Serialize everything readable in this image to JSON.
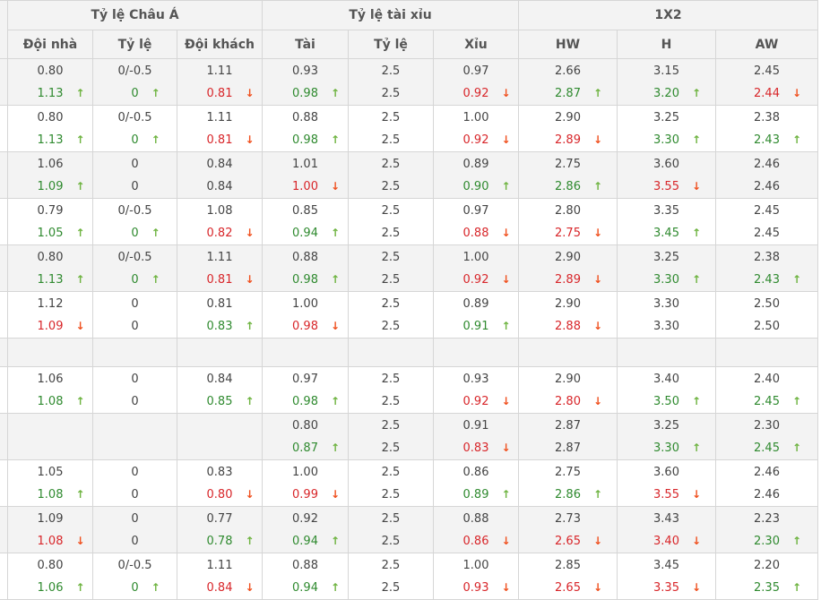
{
  "header": {
    "groups": [
      "Tỷ lệ Châu Á",
      "Tỷ lệ tài xỉu",
      "1X2"
    ],
    "columns": [
      "Đội nhà",
      "Tỷ lệ",
      "Đội khách",
      "Tài",
      "Tỷ lệ",
      "Xỉu",
      "HW",
      "H",
      "AW"
    ]
  },
  "colors": {
    "up_text": "#2f8a2f",
    "down_text": "#d8262a",
    "up_arrow": "#6db33f",
    "down_arrow": "#f0501e",
    "stripe": "#f3f3f3"
  },
  "icons": {
    "up": "arrow-up-icon",
    "down": "arrow-down-icon"
  },
  "rows": [
    [
      [
        "0.80",
        "1.13",
        "up"
      ],
      [
        "0/-0.5",
        "0",
        "up"
      ],
      [
        "1.11",
        "0.81",
        "down"
      ],
      [
        "0.93",
        "0.98",
        "up"
      ],
      [
        "2.5",
        "2.5",
        ""
      ],
      [
        "0.97",
        "0.92",
        "down"
      ],
      [
        "2.66",
        "2.87",
        "up"
      ],
      [
        "3.15",
        "3.20",
        "up"
      ],
      [
        "2.45",
        "2.44",
        "down"
      ]
    ],
    [
      [
        "0.80",
        "1.13",
        "up"
      ],
      [
        "0/-0.5",
        "0",
        "up"
      ],
      [
        "1.11",
        "0.81",
        "down"
      ],
      [
        "0.88",
        "0.98",
        "up"
      ],
      [
        "2.5",
        "2.5",
        ""
      ],
      [
        "1.00",
        "0.92",
        "down"
      ],
      [
        "2.90",
        "2.89",
        "down"
      ],
      [
        "3.25",
        "3.30",
        "up"
      ],
      [
        "2.38",
        "2.43",
        "up"
      ]
    ],
    [
      [
        "1.06",
        "1.09",
        "up"
      ],
      [
        "0",
        "0",
        ""
      ],
      [
        "0.84",
        "0.84",
        ""
      ],
      [
        "1.01",
        "1.00",
        "down"
      ],
      [
        "2.5",
        "2.5",
        ""
      ],
      [
        "0.89",
        "0.90",
        "up"
      ],
      [
        "2.75",
        "2.86",
        "up"
      ],
      [
        "3.60",
        "3.55",
        "down"
      ],
      [
        "2.46",
        "2.46",
        ""
      ]
    ],
    [
      [
        "0.79",
        "1.05",
        "up"
      ],
      [
        "0/-0.5",
        "0",
        "up"
      ],
      [
        "1.08",
        "0.82",
        "down"
      ],
      [
        "0.85",
        "0.94",
        "up"
      ],
      [
        "2.5",
        "2.5",
        ""
      ],
      [
        "0.97",
        "0.88",
        "down"
      ],
      [
        "2.80",
        "2.75",
        "down"
      ],
      [
        "3.35",
        "3.45",
        "up"
      ],
      [
        "2.45",
        "2.45",
        ""
      ]
    ],
    [
      [
        "0.80",
        "1.13",
        "up"
      ],
      [
        "0/-0.5",
        "0",
        "up"
      ],
      [
        "1.11",
        "0.81",
        "down"
      ],
      [
        "0.88",
        "0.98",
        "up"
      ],
      [
        "2.5",
        "2.5",
        ""
      ],
      [
        "1.00",
        "0.92",
        "down"
      ],
      [
        "2.90",
        "2.89",
        "down"
      ],
      [
        "3.25",
        "3.30",
        "up"
      ],
      [
        "2.38",
        "2.43",
        "up"
      ]
    ],
    [
      [
        "1.12",
        "1.09",
        "down"
      ],
      [
        "0",
        "0",
        ""
      ],
      [
        "0.81",
        "0.83",
        "up"
      ],
      [
        "1.00",
        "0.98",
        "down"
      ],
      [
        "2.5",
        "2.5",
        ""
      ],
      [
        "0.89",
        "0.91",
        "up"
      ],
      [
        "2.90",
        "2.88",
        "down"
      ],
      [
        "3.30",
        "3.30",
        ""
      ],
      [
        "2.50",
        "2.50",
        ""
      ]
    ],
    [],
    [
      [
        "1.06",
        "1.08",
        "up"
      ],
      [
        "0",
        "0",
        ""
      ],
      [
        "0.84",
        "0.85",
        "up"
      ],
      [
        "0.97",
        "0.98",
        "up"
      ],
      [
        "2.5",
        "2.5",
        ""
      ],
      [
        "0.93",
        "0.92",
        "down"
      ],
      [
        "2.90",
        "2.80",
        "down"
      ],
      [
        "3.40",
        "3.50",
        "up"
      ],
      [
        "2.40",
        "2.45",
        "up"
      ]
    ],
    [
      [
        "",
        "",
        ""
      ],
      [
        "",
        "",
        ""
      ],
      [
        "",
        "",
        ""
      ],
      [
        "0.80",
        "0.87",
        "up"
      ],
      [
        "2.5",
        "2.5",
        ""
      ],
      [
        "0.91",
        "0.83",
        "down"
      ],
      [
        "2.87",
        "2.87",
        ""
      ],
      [
        "3.25",
        "3.30",
        "up"
      ],
      [
        "2.30",
        "2.45",
        "up"
      ]
    ],
    [
      [
        "1.05",
        "1.08",
        "up"
      ],
      [
        "0",
        "0",
        ""
      ],
      [
        "0.83",
        "0.80",
        "down"
      ],
      [
        "1.00",
        "0.99",
        "down"
      ],
      [
        "2.5",
        "2.5",
        ""
      ],
      [
        "0.86",
        "0.89",
        "up"
      ],
      [
        "2.75",
        "2.86",
        "up"
      ],
      [
        "3.60",
        "3.55",
        "down"
      ],
      [
        "2.46",
        "2.46",
        ""
      ]
    ],
    [
      [
        "1.09",
        "1.08",
        "down"
      ],
      [
        "0",
        "0",
        ""
      ],
      [
        "0.77",
        "0.78",
        "up"
      ],
      [
        "0.92",
        "0.94",
        "up"
      ],
      [
        "2.5",
        "2.5",
        ""
      ],
      [
        "0.88",
        "0.86",
        "down"
      ],
      [
        "2.73",
        "2.65",
        "down"
      ],
      [
        "3.43",
        "3.40",
        "down"
      ],
      [
        "2.23",
        "2.30",
        "up"
      ]
    ],
    [
      [
        "0.80",
        "1.06",
        "up"
      ],
      [
        "0/-0.5",
        "0",
        "up"
      ],
      [
        "1.11",
        "0.84",
        "down"
      ],
      [
        "0.88",
        "0.94",
        "up"
      ],
      [
        "2.5",
        "2.5",
        ""
      ],
      [
        "1.00",
        "0.93",
        "down"
      ],
      [
        "2.85",
        "2.65",
        "down"
      ],
      [
        "3.45",
        "3.35",
        "down"
      ],
      [
        "2.20",
        "2.35",
        "up"
      ]
    ]
  ]
}
